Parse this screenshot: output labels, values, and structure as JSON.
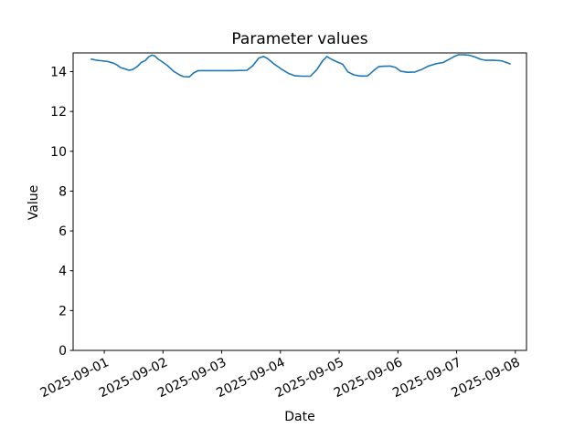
{
  "chart_data": {
    "type": "line",
    "title": "Parameter values",
    "xlabel": "Date",
    "ylabel": "Value",
    "x_tick_labels": [
      "2025-09-01",
      "2025-09-02",
      "2025-09-03",
      "2025-09-04",
      "2025-09-05",
      "2025-09-06",
      "2025-09-07",
      "2025-09-08"
    ],
    "x_tick_positions_days": [
      0,
      1,
      2,
      3,
      4,
      5,
      6,
      7
    ],
    "xlim_days": [
      -0.53,
      7.19
    ],
    "y_ticks": [
      0,
      2,
      4,
      6,
      8,
      10,
      12,
      14
    ],
    "ylim": [
      0,
      14.94
    ],
    "grid": false,
    "legend": "none",
    "line_color": "#1f77b4",
    "axis_color": "#000000",
    "background_color": "#ffffff",
    "x_tick_label_rotation_deg": -26,
    "series": [
      {
        "name": "parameter-values-line",
        "x_days": [
          -0.22,
          -0.14,
          -0.06,
          0.06,
          0.16,
          0.22,
          0.28,
          0.34,
          0.42,
          0.48,
          0.56,
          0.63,
          0.7,
          0.76,
          0.81,
          0.86,
          0.92,
          0.96,
          1.07,
          1.18,
          1.28,
          1.35,
          1.45,
          1.52,
          1.6,
          1.73,
          1.96,
          2.19,
          2.43,
          2.53,
          2.63,
          2.71,
          2.78,
          2.89,
          3.02,
          3.14,
          3.25,
          3.37,
          3.51,
          3.62,
          3.72,
          3.79,
          3.87,
          3.97,
          4.06,
          4.15,
          4.25,
          4.35,
          4.48,
          4.53,
          4.57,
          4.67,
          4.76,
          4.87,
          4.96,
          5.05,
          5.16,
          5.29,
          5.4,
          5.52,
          5.65,
          5.77,
          5.86,
          5.96,
          6.03,
          6.13,
          6.22,
          6.31,
          6.41,
          6.5,
          6.63,
          6.75,
          6.83,
          6.91
        ],
        "values": [
          14.63,
          14.58,
          14.55,
          14.51,
          14.42,
          14.33,
          14.2,
          14.15,
          14.07,
          14.1,
          14.25,
          14.46,
          14.56,
          14.75,
          14.83,
          14.79,
          14.62,
          14.55,
          14.32,
          14.02,
          13.84,
          13.75,
          13.74,
          13.93,
          14.05,
          14.05,
          14.05,
          14.05,
          14.07,
          14.3,
          14.68,
          14.76,
          14.66,
          14.39,
          14.12,
          13.91,
          13.79,
          13.77,
          13.77,
          14.1,
          14.55,
          14.76,
          14.62,
          14.48,
          14.37,
          13.98,
          13.84,
          13.78,
          13.78,
          13.9,
          14.01,
          14.25,
          14.27,
          14.28,
          14.21,
          14.02,
          13.97,
          13.98,
          14.1,
          14.28,
          14.4,
          14.46,
          14.6,
          14.76,
          14.85,
          14.85,
          14.82,
          14.74,
          14.62,
          14.57,
          14.57,
          14.55,
          14.48,
          14.39
        ]
      }
    ]
  }
}
